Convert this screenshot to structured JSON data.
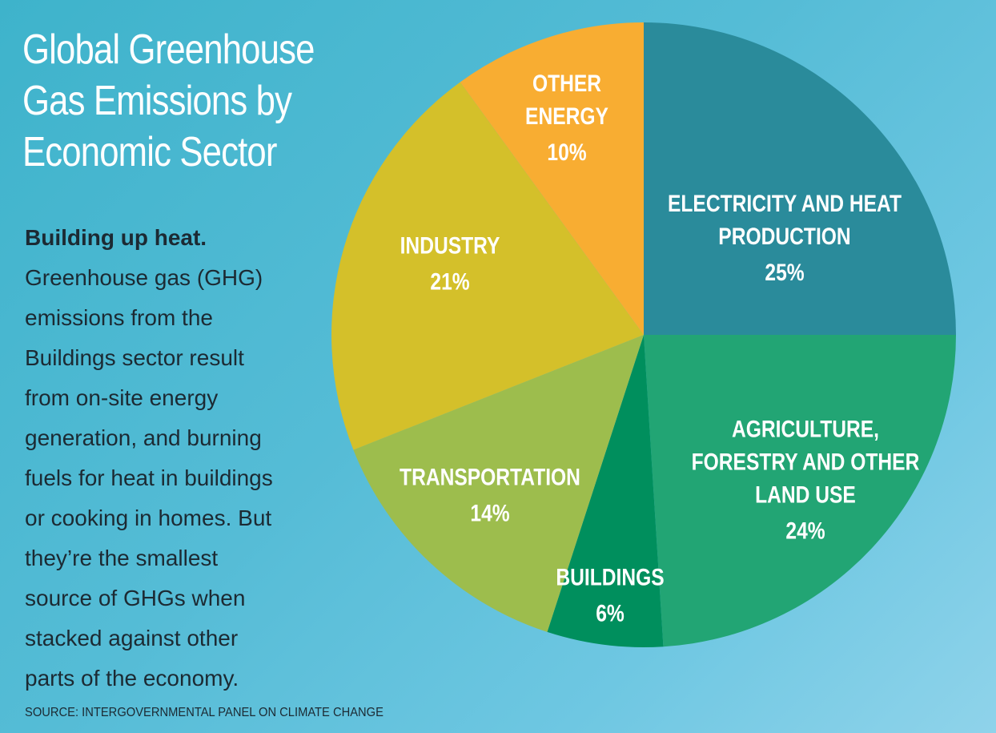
{
  "title": {
    "lines": [
      "Global Greenhouse",
      "Gas Emissions by",
      "Economic Sector"
    ]
  },
  "description": {
    "lead": "Building up heat.",
    "lines": [
      "Greenhouse gas (GHG)",
      "emissions from the",
      "Buildings sector result",
      "from on-site energy",
      "generation, and burning",
      "fuels for heat in buildings",
      "or cooking in homes. But",
      "they’re the smallest",
      "source of GHGs when",
      "stacked against other",
      "parts of the economy."
    ]
  },
  "source": "SOURCE: INTERGOVERNMENTAL PANEL ON CLIMATE CHANGE",
  "chart_data": {
    "type": "pie",
    "title": "Global Greenhouse Gas Emissions by Economic Sector",
    "start": "12 o'clock",
    "direction": "clockwise",
    "slices": [
      {
        "label_lines": [
          "ELECTRICITY AND HEAT",
          "PRODUCTION"
        ],
        "value_label": "25%",
        "value": 25,
        "color": "#2a8b9b"
      },
      {
        "label_lines": [
          "AGRICULTURE,",
          "FORESTRY AND OTHER",
          "LAND USE"
        ],
        "value_label": "24%",
        "value": 24,
        "color": "#22a574"
      },
      {
        "label_lines": [
          "BUILDINGS"
        ],
        "value_label": "6%",
        "value": 6,
        "color": "#008f5d"
      },
      {
        "label_lines": [
          "TRANSPORTATION"
        ],
        "value_label": "14%",
        "value": 14,
        "color": "#9dbd4d"
      },
      {
        "label_lines": [
          "INDUSTRY"
        ],
        "value_label": "21%",
        "value": 21,
        "color": "#d4c02a"
      },
      {
        "label_lines": [
          "OTHER",
          "ENERGY"
        ],
        "value_label": "10%",
        "value": 10,
        "color": "#f8ad32"
      }
    ]
  }
}
